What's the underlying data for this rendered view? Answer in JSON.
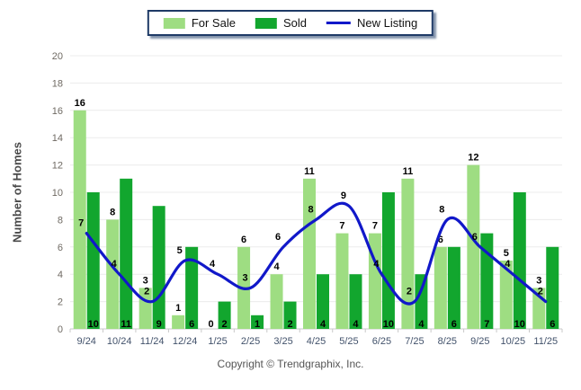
{
  "legend": {
    "items": [
      {
        "label": "For Sale",
        "color": "#9edd82",
        "marker": "swatch"
      },
      {
        "label": "Sold",
        "color": "#12a62e",
        "marker": "swatch"
      },
      {
        "label": "New Listing",
        "color": "#1118c9",
        "marker": "line"
      }
    ]
  },
  "footer": {
    "text": "Copyright © Trendgraphix, Inc."
  },
  "colors": {
    "grid": "#ececec",
    "axis": "#c9c9c9",
    "y_tick_text": "#6f6a63",
    "x_tick_text": "#42526b",
    "data_label": "#000000",
    "background": "#ffffff"
  },
  "chart_data": {
    "type": "bar",
    "title": "",
    "ylabel": "Number of Homes",
    "xlabel": "",
    "ylim": [
      0,
      20
    ],
    "ytick_step": 2,
    "grid": "horizontal",
    "legend_position": "top-center",
    "categories": [
      "9/24",
      "10/24",
      "11/24",
      "12/24",
      "1/25",
      "2/25",
      "3/25",
      "4/25",
      "5/25",
      "6/25",
      "7/25",
      "8/25",
      "9/25",
      "10/25",
      "11/25"
    ],
    "series": [
      {
        "name": "For Sale",
        "type": "bar",
        "color": "#9edd82",
        "values": [
          16,
          8,
          3,
          1,
          0,
          6,
          4,
          11,
          7,
          7,
          11,
          6,
          12,
          5,
          3
        ]
      },
      {
        "name": "Sold",
        "type": "bar",
        "color": "#12a62e",
        "values": [
          10,
          11,
          9,
          6,
          2,
          1,
          2,
          4,
          4,
          10,
          4,
          6,
          7,
          10,
          6
        ]
      },
      {
        "name": "New Listing",
        "type": "line",
        "color": "#1118c9",
        "values": [
          7,
          4,
          2,
          5,
          4,
          3,
          6,
          8,
          9,
          4,
          2,
          8,
          6,
          4,
          2
        ]
      }
    ]
  }
}
